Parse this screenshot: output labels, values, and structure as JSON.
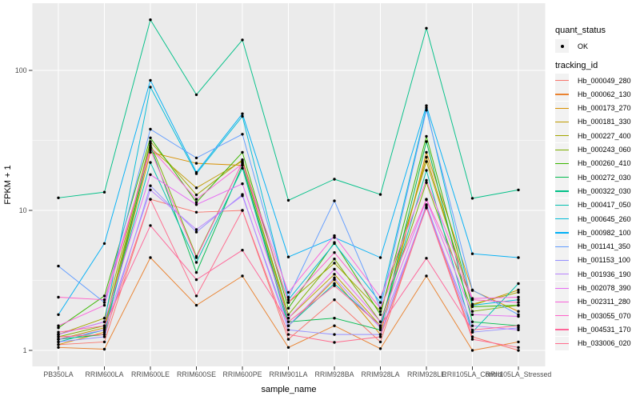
{
  "figure": {
    "background": "#FFFFFF",
    "panel_bg": "#EBEBEB",
    "grid_color": "#FFFFFF",
    "axis_text_color": "#4D4D4D",
    "tick_color": "#333333",
    "point_color": "#000000",
    "legend_key_bg": "#F2F2F2"
  },
  "axes": {
    "x_title": "sample_name",
    "y_title": "FPKM + 1",
    "y_tick_labels": [
      "1",
      "10",
      "100"
    ],
    "y_tick_values": [
      1,
      10,
      100
    ],
    "y_minor_values": [
      3.1623,
      31.623
    ]
  },
  "legend": {
    "quant_title": "quant_status",
    "quant_items": [
      {
        "label": "OK",
        "symbol": "point-icon"
      }
    ],
    "tracking_title": "tracking_id"
  },
  "chart_data": {
    "type": "line",
    "title": "",
    "xlabel": "sample_name",
    "ylabel": "FPKM + 1",
    "y_scale": "log10",
    "ylim": [
      0.95,
      280
    ],
    "grid": true,
    "legend_position": "right",
    "point_marker": "black-dot",
    "categories": [
      "PB350LA",
      "RRIM600LA",
      "RRIM600LE",
      "RRIM600SE",
      "RRIM600PE",
      "RRIM901LA",
      "RRIM928BA",
      "RRIM928LA",
      "RRIM928LE",
      "RRII105LA_Control",
      "RRII105LA_Stressed"
    ],
    "series": [
      {
        "name": "Hb_000049_280",
        "color": "#F8766D",
        "values": [
          1.1,
          1.15,
          12,
          9.7,
          10,
          1.2,
          2.3,
          1.15,
          10.8,
          1.25,
          1.0
        ]
      },
      {
        "name": "Hb_000062_130",
        "color": "#EA8331",
        "values": [
          1.05,
          1.02,
          4.6,
          2.1,
          3.4,
          1.05,
          1.5,
          1.03,
          3.4,
          1.0,
          1.15
        ]
      },
      {
        "name": "Hb_000173_270",
        "color": "#D89000",
        "values": [
          1.1,
          1.35,
          26,
          21.7,
          21,
          1.5,
          3.2,
          1.3,
          26,
          2.68,
          1.9
        ]
      },
      {
        "name": "Hb_000181_330",
        "color": "#C09B00",
        "values": [
          1.2,
          1.45,
          28,
          14.5,
          22.5,
          1.7,
          3.5,
          1.5,
          24,
          2.1,
          2.7
        ]
      },
      {
        "name": "Hb_000227_400",
        "color": "#A3A500",
        "values": [
          1.3,
          1.7,
          31,
          12.9,
          23,
          2.2,
          4.2,
          1.9,
          22.3,
          2.14,
          2.6
        ]
      },
      {
        "name": "Hb_000243_060",
        "color": "#7CAE00",
        "values": [
          1.25,
          1.5,
          30,
          4.7,
          22,
          1.8,
          4.5,
          1.6,
          15.8,
          1.9,
          2.1
        ]
      },
      {
        "name": "Hb_000260_410",
        "color": "#39B600",
        "values": [
          1.45,
          2.45,
          33,
          11.4,
          26,
          2.0,
          5.9,
          1.8,
          33.8,
          2.05,
          2.1
        ]
      },
      {
        "name": "Hb_000272_030",
        "color": "#00BB4E",
        "values": [
          1.2,
          1.3,
          29,
          3.6,
          21,
          1.6,
          1.7,
          1.4,
          31,
          1.6,
          1.5
        ]
      },
      {
        "name": "Hb_000322_030",
        "color": "#00C087",
        "values": [
          12.3,
          13.5,
          230,
          67,
          165,
          11.8,
          16.7,
          13,
          200,
          12.2,
          14
        ]
      },
      {
        "name": "Hb_000417_050",
        "color": "#00C0AF",
        "values": [
          1.15,
          1.4,
          22,
          4.25,
          20,
          1.5,
          3.0,
          1.5,
          19.3,
          1.35,
          3.0
        ]
      },
      {
        "name": "Hb_000645_260",
        "color": "#00BCD8",
        "values": [
          1.3,
          1.6,
          76,
          18.3,
          47,
          2.3,
          5.8,
          2.2,
          54,
          2.1,
          2.3
        ]
      },
      {
        "name": "Hb_000982_100",
        "color": "#00B0F6",
        "values": [
          1.8,
          5.8,
          85,
          18.7,
          49,
          4.65,
          6.4,
          4.6,
          56,
          4.9,
          4.6
        ]
      },
      {
        "name": "Hb_001141_350",
        "color": "#619CFF",
        "values": [
          4.0,
          2.2,
          38,
          23.7,
          35,
          2.4,
          11.7,
          2.0,
          52,
          2.7,
          1.8
        ]
      },
      {
        "name": "Hb_001153_100",
        "color": "#9590FF",
        "values": [
          1.15,
          1.25,
          15,
          7.0,
          13,
          1.4,
          1.3,
          1.3,
          11,
          1.35,
          1.45
        ]
      },
      {
        "name": "Hb_001936_190",
        "color": "#B983FF",
        "values": [
          1.2,
          1.4,
          14,
          7.3,
          12.7,
          1.5,
          3.3,
          1.45,
          10.4,
          1.5,
          1.4
        ]
      },
      {
        "name": "Hb_002078_390",
        "color": "#E76BF3",
        "values": [
          1.3,
          1.6,
          18,
          11.0,
          15.5,
          1.7,
          3.8,
          1.6,
          11.9,
          1.8,
          1.75
        ]
      },
      {
        "name": "Hb_002311_280",
        "color": "#FA62DB",
        "values": [
          1.5,
          2.1,
          28,
          12.0,
          21.5,
          2.6,
          6.6,
          2.4,
          16.4,
          2.35,
          2.4
        ]
      },
      {
        "name": "Hb_003055_070",
        "color": "#FF61C9",
        "values": [
          2.4,
          2.3,
          27,
          4.6,
          22,
          2.2,
          5.0,
          2.0,
          12,
          2.3,
          2.2
        ]
      },
      {
        "name": "Hb_004531_170",
        "color": "#FF6699",
        "values": [
          1.35,
          1.5,
          7.8,
          3.2,
          5.2,
          1.6,
          2.9,
          1.5,
          4.55,
          1.4,
          1.5
        ]
      },
      {
        "name": "Hb_033006_020",
        "color": "#FF6B8D",
        "values": [
          1.25,
          1.3,
          12,
          2.45,
          10,
          1.3,
          1.14,
          1.25,
          10.5,
          1.2,
          1.05
        ]
      }
    ]
  }
}
